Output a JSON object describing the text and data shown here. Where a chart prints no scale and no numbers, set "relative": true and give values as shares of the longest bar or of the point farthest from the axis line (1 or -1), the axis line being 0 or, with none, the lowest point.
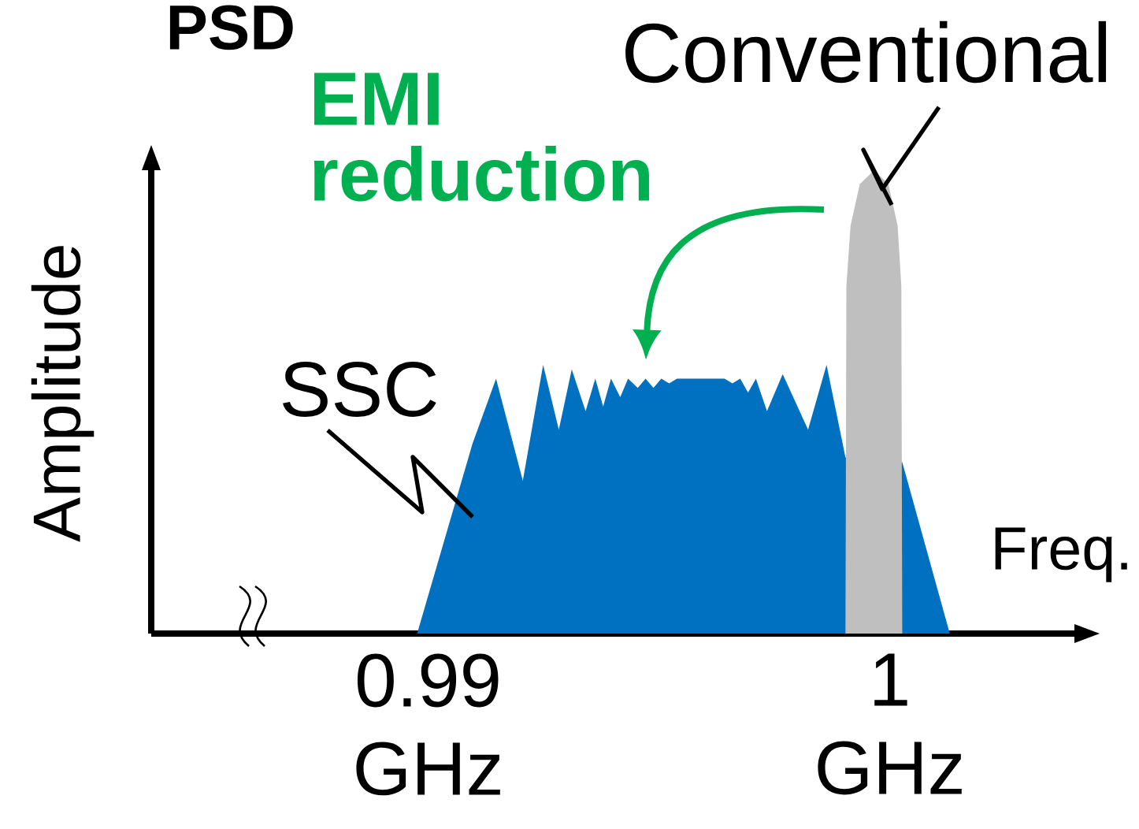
{
  "chart_data": {
    "type": "area",
    "title": "PSD",
    "xlabel": "Freq.",
    "ylabel": "Amplitude",
    "relative": true,
    "xlim": [
      0.984,
      1.004
    ],
    "xticks": [
      {
        "value": 0.99,
        "label": "0.99 GHz"
      },
      {
        "value": 1,
        "label": "1 GHz"
      }
    ],
    "series": [
      {
        "color": "#0070c0",
        "x": [
          0.98976,
          0.99096,
          0.99147,
          0.99205,
          0.99249,
          0.99283,
          0.99311,
          0.99341,
          0.99362,
          0.99379,
          0.99396,
          0.99416,
          0.99433,
          0.99454,
          0.99471,
          0.99488,
          0.99505,
          0.99522,
          0.99539,
          0.99573,
          0.99608,
          0.99642,
          0.99659,
          0.99676,
          0.99693,
          0.9971,
          0.99734,
          0.99768,
          0.99823,
          0.99863,
          0.99904,
          1.00027,
          1.0013
        ],
        "values": [
          0,
          0.41,
          0.55,
          0.33,
          0.58,
          0.44,
          0.57,
          0.48,
          0.55,
          0.49,
          0.55,
          0.51,
          0.55,
          0.53,
          0.55,
          0.53,
          0.55,
          0.54,
          0.55,
          0.55,
          0.55,
          0.55,
          0.54,
          0.55,
          0.52,
          0.55,
          0.48,
          0.56,
          0.44,
          0.58,
          0.38,
          0.37,
          0
        ]
      },
      {
        "color": "#bfbfbf",
        "x": [
          0.99904,
          0.99906,
          0.99915,
          0.99935,
          0.99966,
          0.99997,
          1.00017,
          1.00025,
          1.00027
        ],
        "values": [
          0,
          0.75,
          0.88,
          0.97,
          1,
          0.97,
          0.88,
          0.75,
          0
        ]
      }
    ],
    "annotations": [
      "EMI reduction",
      "SSC",
      "Conventional"
    ]
  }
}
